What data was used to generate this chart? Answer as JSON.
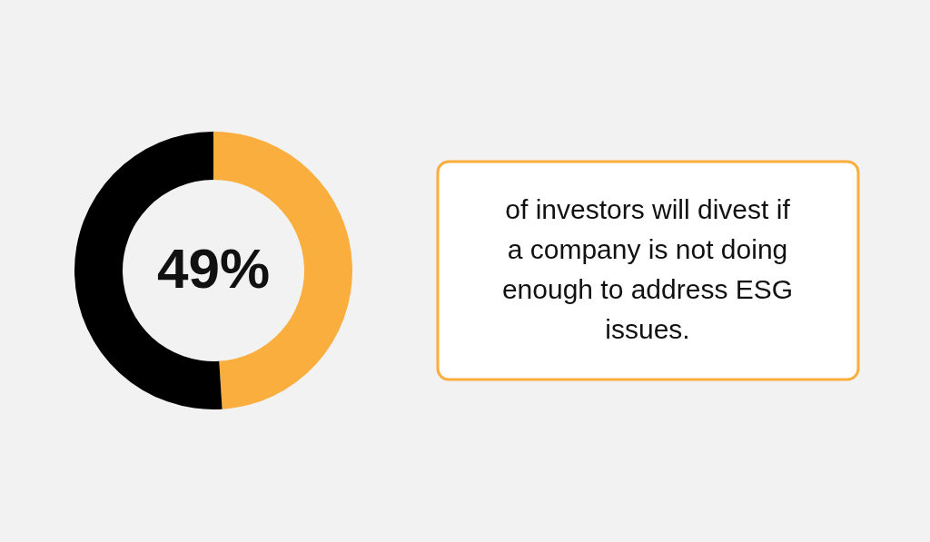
{
  "chart_data": {
    "type": "donut",
    "categories": [
      null,
      null
    ],
    "values": [
      49,
      51
    ],
    "colors": [
      "#f9ae3d",
      "#000000"
    ],
    "value_labels": [
      "49%",
      null
    ],
    "annotations": [
      "of investors will divest if a company is not doing enough to address ESG issues."
    ]
  }
}
